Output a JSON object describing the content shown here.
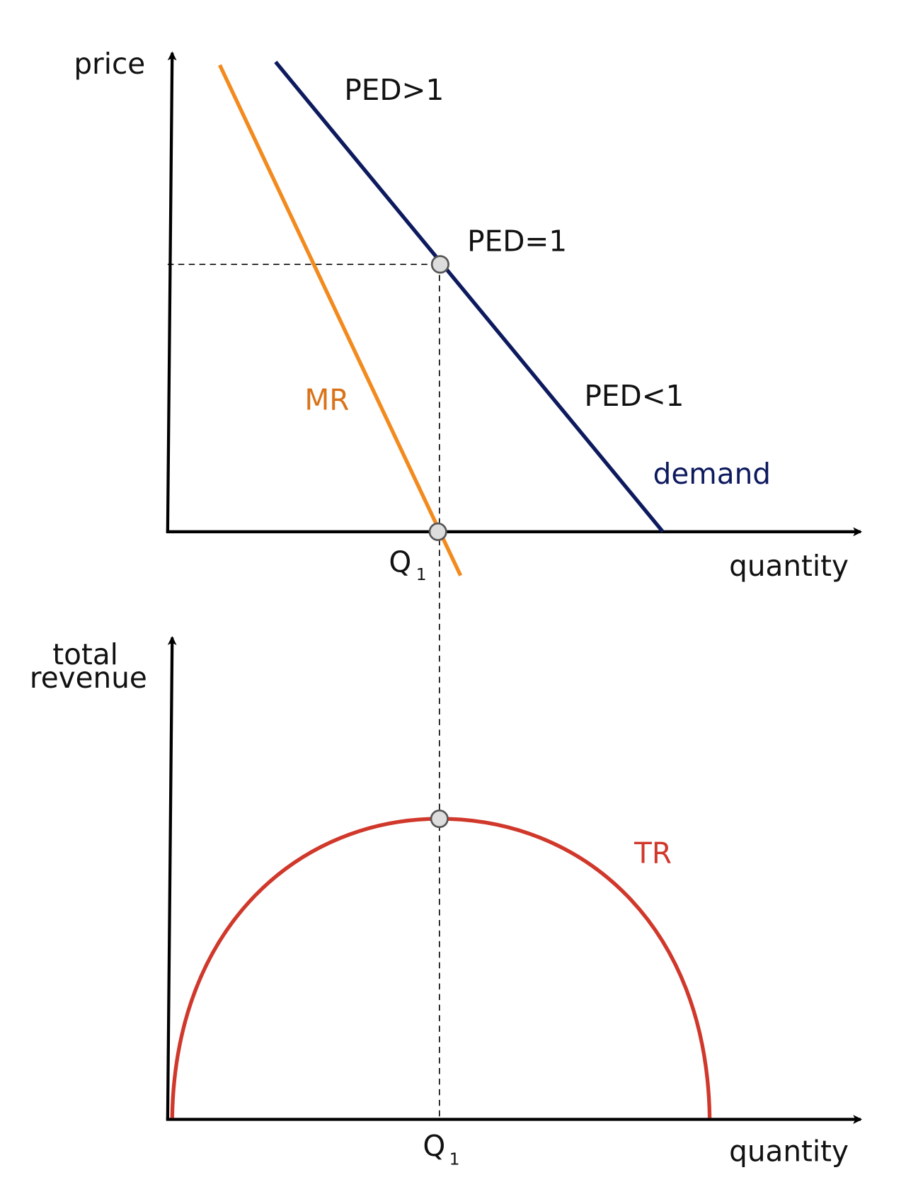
{
  "top_panel": {
    "y_axis_label": "price",
    "x_axis_label": "quantity",
    "annotations": [
      "PED>1",
      "PED=1",
      "PED<1"
    ],
    "demand_label": "demand",
    "mr_label": "MR",
    "q_label": {
      "text": "Q",
      "subscript": "1"
    }
  },
  "bottom_panel": {
    "y_axis_label": [
      "total",
      "revenue"
    ],
    "x_axis_label": "quantity",
    "tr_label": "TR",
    "q_label": {
      "text": "Q",
      "subscript": "1"
    }
  }
}
